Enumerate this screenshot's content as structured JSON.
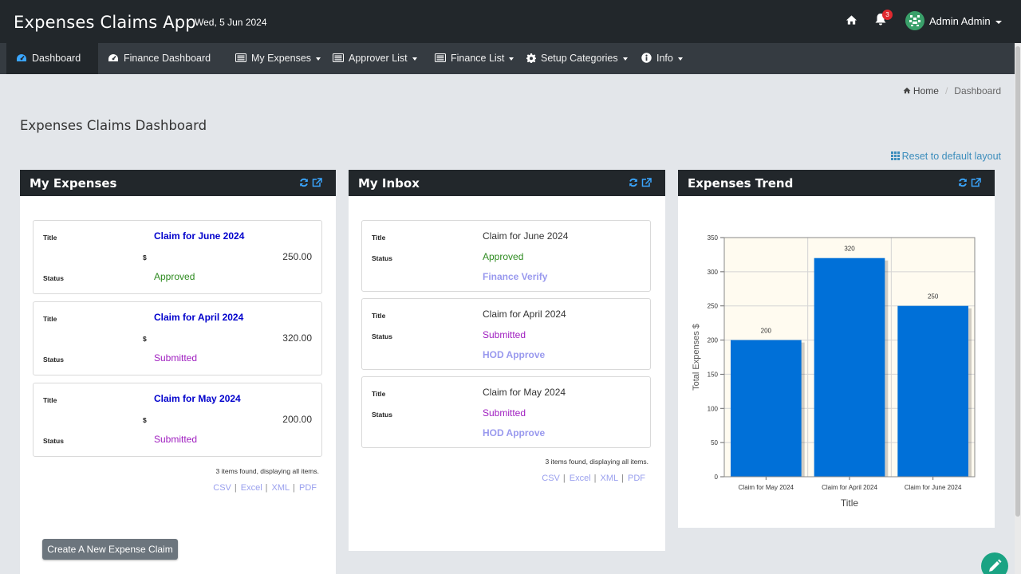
{
  "header": {
    "app_title": "Expenses Claims App",
    "date": "Wed, 5 Jun 2024",
    "notification_count": "3",
    "user_name": "Admin Admin"
  },
  "nav": [
    {
      "label": "Dashboard",
      "icon": "dashboard-icon",
      "active": true,
      "dropdown": false
    },
    {
      "label": "Finance Dashboard",
      "icon": "dashboard-icon",
      "active": false,
      "dropdown": false
    },
    {
      "label": "My Expenses",
      "icon": "list-icon",
      "active": false,
      "dropdown": true
    },
    {
      "label": "Approver List",
      "icon": "list-icon",
      "active": false,
      "dropdown": true
    },
    {
      "label": "Finance List",
      "icon": "list-icon",
      "active": false,
      "dropdown": true
    },
    {
      "label": "Setup Categories",
      "icon": "gear-icon",
      "active": false,
      "dropdown": true
    },
    {
      "label": "Info",
      "icon": "info-icon",
      "active": false,
      "dropdown": true
    }
  ],
  "breadcrumb": {
    "home": "Home",
    "current": "Dashboard"
  },
  "page": {
    "title": "Expenses Claims Dashboard",
    "reset_layout": "Reset to default layout"
  },
  "my_expenses": {
    "title": "My Expenses",
    "label_title": "Title",
    "label_status": "Status",
    "currency": "$",
    "items": [
      {
        "title": "Claim for June 2024",
        "amount": "250.00",
        "status": "Approved"
      },
      {
        "title": "Claim for April 2024",
        "amount": "320.00",
        "status": "Submitted"
      },
      {
        "title": "Claim for May 2024",
        "amount": "200.00",
        "status": "Submitted"
      }
    ],
    "items_found": "3 items found, displaying all items.",
    "exports": [
      "CSV",
      "Excel",
      "XML",
      "PDF"
    ],
    "create_button": "Create A New Expense Claim"
  },
  "my_inbox": {
    "title": "My Inbox",
    "label_title": "Title",
    "label_status": "Status",
    "items": [
      {
        "title": "Claim for June 2024",
        "status": "Approved",
        "action": "Finance Verify"
      },
      {
        "title": "Claim for April 2024",
        "status": "Submitted",
        "action": "HOD Approve"
      },
      {
        "title": "Claim for May 2024",
        "status": "Submitted",
        "action": "HOD Approve"
      }
    ],
    "items_found": "3 items found, displaying all items.",
    "exports": [
      "CSV",
      "Excel",
      "XML",
      "PDF"
    ]
  },
  "trend": {
    "title": "Expenses Trend"
  },
  "colors": {
    "topbar": "#22272b",
    "navbar": "#353b41",
    "bar": "#0070d8",
    "plot_bg": "#fffbf0",
    "approved": "#2e8b20",
    "submitted": "#a020c0"
  },
  "chart_data": {
    "type": "bar",
    "categories": [
      "Claim for May 2024",
      "Claim for April 2024",
      "Claim for June 2024"
    ],
    "values": [
      200,
      320,
      250
    ],
    "data_labels": [
      "200",
      "320",
      "250"
    ],
    "title": "",
    "xlabel": "Title",
    "ylabel": "Total Expenses $",
    "ylim": [
      0,
      350
    ],
    "yticks": [
      0,
      50,
      100,
      150,
      200,
      250,
      300,
      350
    ],
    "grid": true,
    "legend": "none"
  }
}
